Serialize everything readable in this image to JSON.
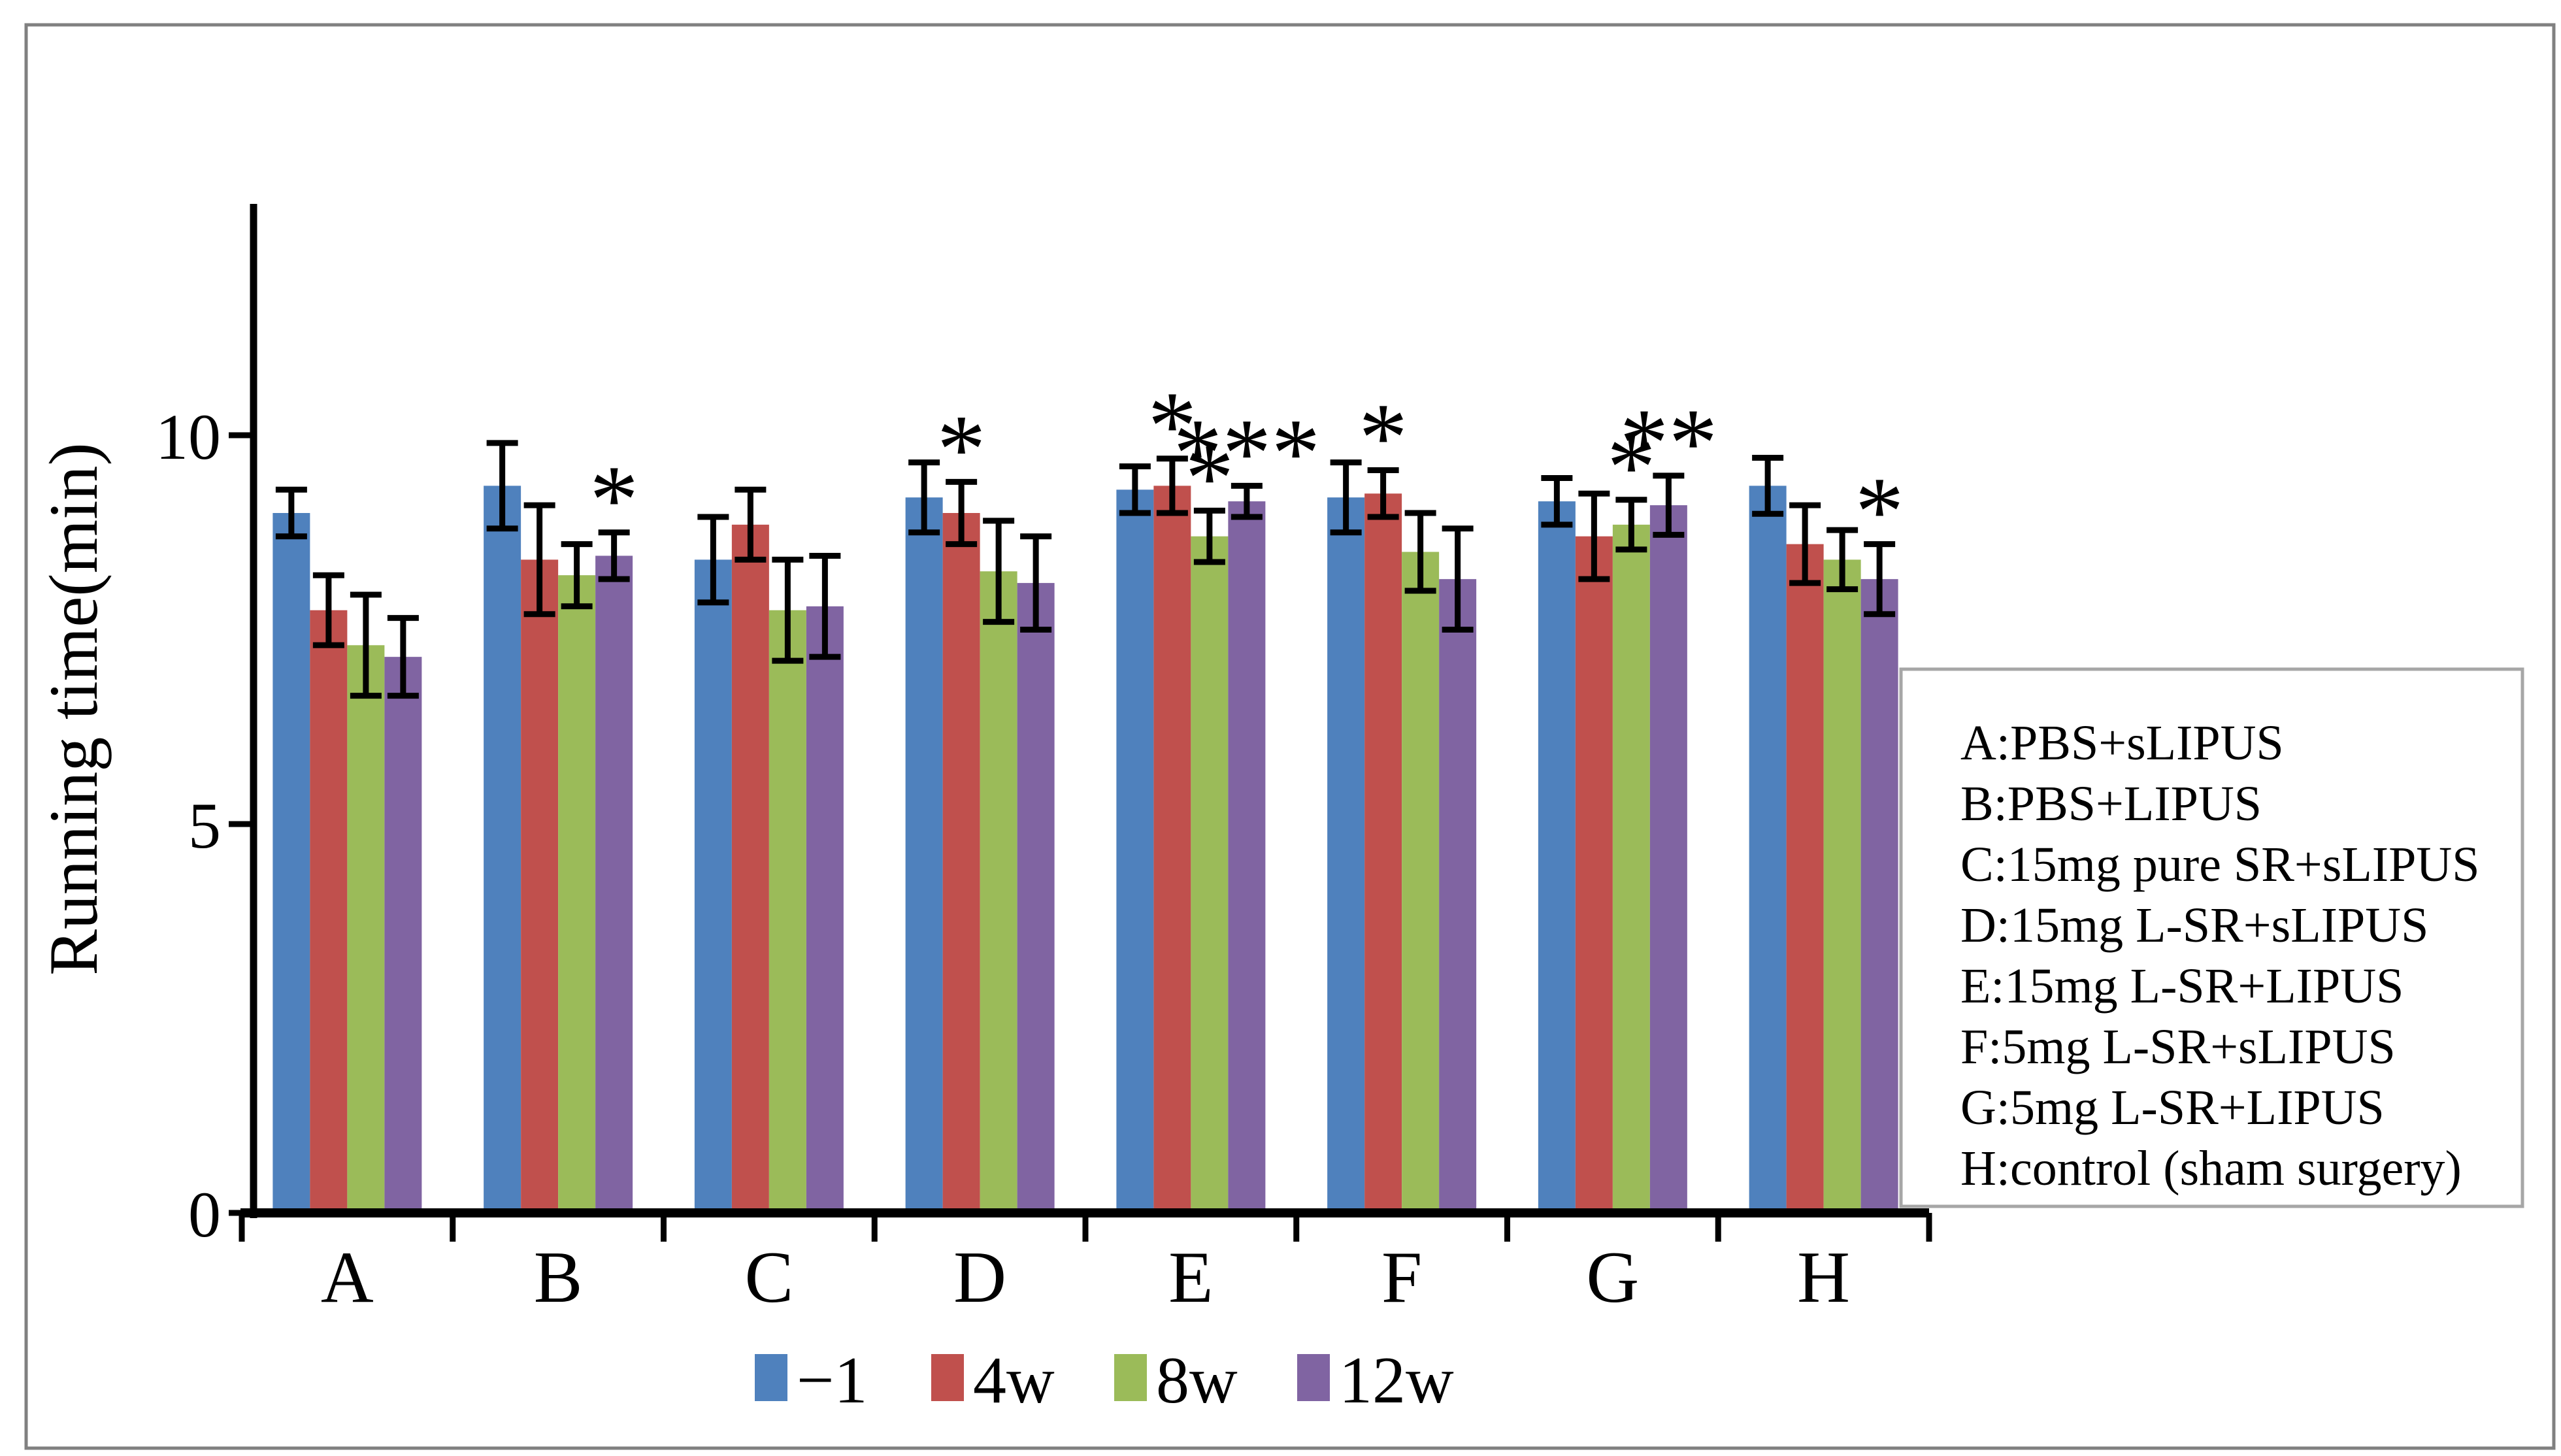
{
  "figure": {
    "background": "#ffffff",
    "border_color": "#808080",
    "inner_box_border_color": "#a6a6a6",
    "axis_color": "#000000"
  },
  "chart_data": {
    "type": "bar",
    "title": "",
    "xlabel": "",
    "ylabel": "Running time(min)",
    "ylim": [
      0,
      13
    ],
    "yticks": [
      0,
      5,
      10
    ],
    "grid": false,
    "legend_position": "bottom",
    "categories": [
      "A",
      "B",
      "C",
      "D",
      "E",
      "F",
      "G",
      "H"
    ],
    "series": [
      {
        "name": "−1",
        "color": "#4F81BD",
        "values": [
          9.0,
          9.35,
          8.4,
          9.2,
          9.3,
          9.2,
          9.15,
          9.35
        ],
        "errors": [
          0.3,
          0.55,
          0.55,
          0.45,
          0.3,
          0.45,
          0.3,
          0.36
        ]
      },
      {
        "name": "4w",
        "color": "#C0504D",
        "values": [
          7.75,
          8.4,
          8.85,
          9.0,
          9.35,
          9.25,
          8.7,
          8.6
        ],
        "errors": [
          0.45,
          0.7,
          0.45,
          0.4,
          0.35,
          0.3,
          0.55,
          0.5
        ]
      },
      {
        "name": "8w",
        "color": "#9BBB59",
        "values": [
          7.3,
          8.2,
          7.75,
          8.25,
          8.7,
          8.5,
          8.85,
          8.4
        ],
        "errors": [
          0.65,
          0.4,
          0.65,
          0.65,
          0.33,
          0.5,
          0.32,
          0.38
        ]
      },
      {
        "name": "12w",
        "color": "#8064A2",
        "values": [
          7.15,
          8.45,
          7.8,
          8.1,
          9.15,
          8.15,
          9.1,
          8.15
        ],
        "errors": [
          0.5,
          0.3,
          0.65,
          0.6,
          0.2,
          0.65,
          0.38,
          0.45
        ]
      }
    ],
    "significance": [
      {
        "category": "B",
        "series": "12w",
        "label": "*"
      },
      {
        "category": "D",
        "series": "4w",
        "label": "*"
      },
      {
        "category": "E",
        "series": "4w",
        "label": "*"
      },
      {
        "category": "E",
        "series": "8w",
        "label": "*"
      },
      {
        "category": "E",
        "series": "12w",
        "label": "***"
      },
      {
        "category": "F",
        "series": "4w",
        "label": "*"
      },
      {
        "category": "G",
        "series": "8w",
        "label": "*"
      },
      {
        "category": "G",
        "series": "12w",
        "label": "**"
      },
      {
        "category": "H",
        "series": "12w",
        "label": "*"
      }
    ]
  },
  "group_legend_box": {
    "lines": [
      "A:PBS+sLIPUS",
      "B:PBS+LIPUS",
      "C:15mg pure SR+sLIPUS",
      "D:15mg L-SR+sLIPUS",
      "E:15mg L-SR+LIPUS",
      "F:5mg L-SR+sLIPUS",
      "G:5mg L-SR+LIPUS",
      "H:control (sham surgery)"
    ]
  }
}
